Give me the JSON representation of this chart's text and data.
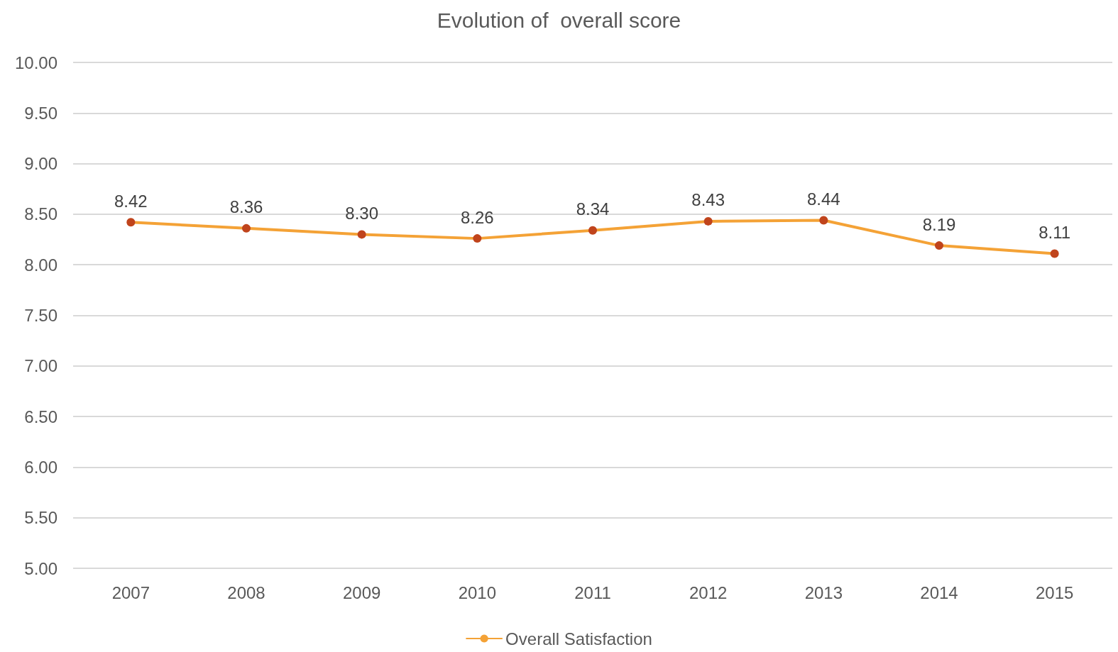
{
  "chart_data": {
    "type": "line",
    "title": "Evolution of  overall score",
    "categories": [
      "2007",
      "2008",
      "2009",
      "2010",
      "2011",
      "2012",
      "2013",
      "2014",
      "2015"
    ],
    "series": [
      {
        "name": "Overall Satisfaction",
        "color": "#f4a236",
        "colors": [
          "#c0441c",
          "#c0441c",
          "#c0441c",
          "#c0441c",
          "#c0441c",
          "#c0441c",
          "#c0441c",
          "#c0441c",
          "#c0441c"
        ],
        "values": [
          8.42,
          8.36,
          8.3,
          8.26,
          8.34,
          8.43,
          8.44,
          8.19,
          8.11
        ],
        "value_labels": [
          "8.42",
          "8.36",
          "8.30",
          "8.26",
          "8.34",
          "8.43",
          "8.44",
          "8.19",
          "8.11"
        ]
      }
    ],
    "ylim": [
      5,
      10
    ],
    "yticks": [
      {
        "value": 5,
        "label": "5.00"
      },
      {
        "value": 5.5,
        "label": "5.50"
      },
      {
        "value": 6,
        "label": "6.00"
      },
      {
        "value": 6.5,
        "label": "6.50"
      },
      {
        "value": 7,
        "label": "7.00"
      },
      {
        "value": 7.5,
        "label": "7.50"
      },
      {
        "value": 8,
        "label": "8.00"
      },
      {
        "value": 8.5,
        "label": "8.50"
      },
      {
        "value": 9,
        "label": "9.00"
      },
      {
        "value": 9.5,
        "label": "9.50"
      },
      {
        "value": 10,
        "label": "10.00"
      }
    ],
    "grid": "y",
    "legend": "bottom",
    "marker": "circle",
    "line_style": "solid"
  }
}
